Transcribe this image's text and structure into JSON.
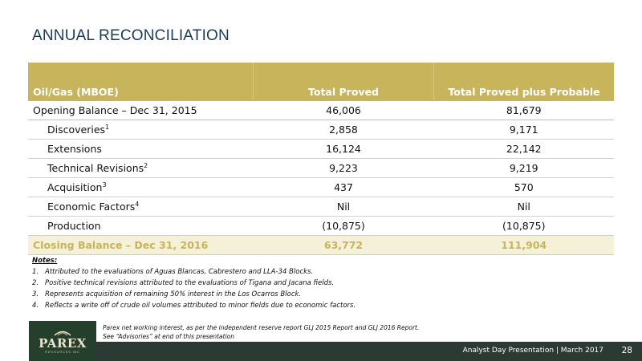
{
  "title": "ANNUAL RECONCILIATION",
  "table": {
    "headers": [
      "Oil/Gas (MBOE)",
      "Total Proved",
      "Total Proved plus Probable"
    ],
    "rows": [
      {
        "label": "Opening Balance – Dec 31, 2015",
        "sup": "",
        "proved": "46,006",
        "proved_probable": "81,679"
      },
      {
        "label": "Discoveries",
        "sup": "1",
        "proved": "2,858",
        "proved_probable": "9,171"
      },
      {
        "label": "Extensions",
        "sup": "",
        "proved": "16,124",
        "proved_probable": "22,142"
      },
      {
        "label": "Technical Revisions",
        "sup": "2",
        "proved": "9,223",
        "proved_probable": "9,219"
      },
      {
        "label": "Acquisition",
        "sup": "3",
        "proved": "437",
        "proved_probable": "570"
      },
      {
        "label": "Economic Factors",
        "sup": "4",
        "proved": "Nil",
        "proved_probable": "Nil"
      },
      {
        "label": "Production",
        "sup": "",
        "proved": "(10,875)",
        "proved_probable": "(10,875)"
      },
      {
        "label": "Closing Balance – Dec 31, 2016",
        "sup": "",
        "proved": "63,772",
        "proved_probable": "111,904"
      }
    ]
  },
  "notes": {
    "heading": "Notes:",
    "items": [
      {
        "num": "1.",
        "text": "Attributed to the evaluations of Aguas Blancas, Cabrestero and LLA-34 Blocks."
      },
      {
        "num": "2.",
        "text": "Positive technical revisions attributed to the evaluations of Tigana and Jacana fields."
      },
      {
        "num": "3.",
        "text": "Represents acquisition of remaining 50% interest in the Los Ocarros Block."
      },
      {
        "num": "4.",
        "text": "Reflects a write off of crude oil volumes attributed to minor fields due to economic factors."
      }
    ]
  },
  "footnote": {
    "line1": "Parex net working interest, as per the independent reserve report GLJ 2015 Report and GLJ 2016 Report.",
    "line2": "See “Advisories” at end of this presentation"
  },
  "logo": {
    "name": "PAREX",
    "sub": "RESOURCES INC"
  },
  "footer": {
    "presentation": "Analyst Day Presentation |  March 2017",
    "page": "28"
  },
  "colors": {
    "header_gold": "#c8b45a",
    "title_blue": "#1a3a5c",
    "footer_dark": "#2b3a33",
    "logo_green": "#243f2b"
  }
}
